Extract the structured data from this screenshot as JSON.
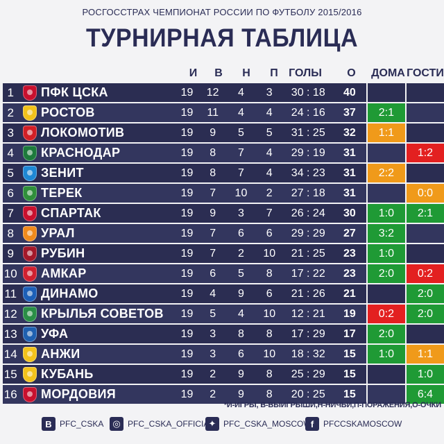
{
  "header": {
    "subtitle": "РОСГОССТРАХ ЧЕМПИОНАТ РОССИИ ПО ФУТБОЛУ 2015/2016",
    "title": "ТУРНИРНАЯ ТАБЛИЦА"
  },
  "columns": {
    "played": "И",
    "won": "В",
    "drawn": "Н",
    "lost": "П",
    "goals": "ГОЛЫ",
    "points": "О",
    "home": "ДОМА",
    "away": "ГОСТИ"
  },
  "colors": {
    "row": "#2b2d52",
    "row_alt": "#33365e",
    "win": "#1f9a35",
    "draw": "#f09a1a",
    "loss": "#e32020",
    "text_dark": "#2a2c55"
  },
  "rows": [
    {
      "pos": "1",
      "team": "ПФК ЦСКА",
      "played": "19",
      "won": "12",
      "drawn": "4",
      "lost": "3",
      "goals": "30 : 18",
      "points": "40",
      "home": "",
      "home_color": "",
      "away": "",
      "away_color": "",
      "crest": "#c8102e",
      "crest_icon": "cska-crest-icon"
    },
    {
      "pos": "2",
      "team": "РОСТОВ",
      "played": "19",
      "won": "11",
      "drawn": "4",
      "lost": "4",
      "goals": "24 : 16",
      "points": "37",
      "home": "2:1",
      "home_color": "green",
      "away": "",
      "away_color": "",
      "crest": "#f2c21b",
      "crest_icon": "rostov-crest-icon"
    },
    {
      "pos": "3",
      "team": "ЛОКОМОТИВ",
      "played": "19",
      "won": "9",
      "drawn": "5",
      "lost": "5",
      "goals": "31 : 25",
      "points": "32",
      "home": "1:1",
      "home_color": "orange",
      "away": "",
      "away_color": "",
      "crest": "#d21f26",
      "crest_icon": "lokomotiv-crest-icon"
    },
    {
      "pos": "4",
      "team": "КРАСНОДАР",
      "played": "19",
      "won": "8",
      "drawn": "7",
      "lost": "4",
      "goals": "29 : 19",
      "points": "31",
      "home": "",
      "home_color": "",
      "away": "1:2",
      "away_color": "red",
      "crest": "#1d7a3c",
      "crest_icon": "krasnodar-crest-icon"
    },
    {
      "pos": "5",
      "team": "ЗЕНИТ",
      "played": "19",
      "won": "8",
      "drawn": "7",
      "lost": "4",
      "goals": "34 : 23",
      "points": "31",
      "home": "2:2",
      "home_color": "orange",
      "away": "",
      "away_color": "",
      "crest": "#1e88d4",
      "crest_icon": "zenit-crest-icon"
    },
    {
      "pos": "6",
      "team": "ТЕРЕК",
      "played": "19",
      "won": "7",
      "drawn": "10",
      "lost": "2",
      "goals": "27 : 18",
      "points": "31",
      "home": "",
      "home_color": "",
      "away": "0:0",
      "away_color": "orange",
      "crest": "#2f8f3a",
      "crest_icon": "terek-crest-icon"
    },
    {
      "pos": "7",
      "team": "СПАРТАК",
      "played": "19",
      "won": "9",
      "drawn": "3",
      "lost": "7",
      "goals": "26 : 24",
      "points": "30",
      "home": "1:0",
      "home_color": "green",
      "away": "2:1",
      "away_color": "green",
      "crest": "#c8102e",
      "crest_icon": "spartak-crest-icon"
    },
    {
      "pos": "8",
      "team": "УРАЛ",
      "played": "19",
      "won": "7",
      "drawn": "6",
      "lost": "6",
      "goals": "29 : 29",
      "points": "27",
      "home": "3:2",
      "home_color": "green",
      "away": "",
      "away_color": "",
      "crest": "#f08a1c",
      "crest_icon": "ural-crest-icon"
    },
    {
      "pos": "9",
      "team": "РУБИН",
      "played": "19",
      "won": "7",
      "drawn": "2",
      "lost": "10",
      "goals": "21 : 25",
      "points": "23",
      "home": "1:0",
      "home_color": "green",
      "away": "",
      "away_color": "",
      "crest": "#a3182a",
      "crest_icon": "rubin-crest-icon"
    },
    {
      "pos": "10",
      "team": "АМКАР",
      "played": "19",
      "won": "6",
      "drawn": "5",
      "lost": "8",
      "goals": "17 : 22",
      "points": "23",
      "home": "2:0",
      "home_color": "green",
      "away": "0:2",
      "away_color": "red",
      "crest": "#d02030",
      "crest_icon": "amkar-crest-icon"
    },
    {
      "pos": "11",
      "team": "ДИНАМО",
      "played": "19",
      "won": "4",
      "drawn": "9",
      "lost": "6",
      "goals": "21 : 26",
      "points": "21",
      "home": "",
      "home_color": "",
      "away": "2:0",
      "away_color": "green",
      "crest": "#1c5fb8",
      "crest_icon": "dinamo-crest-icon"
    },
    {
      "pos": "12",
      "team": "КРЫЛЬЯ СОВЕТОВ",
      "played": "19",
      "won": "5",
      "drawn": "4",
      "lost": "10",
      "goals": "12 : 21",
      "points": "19",
      "home": "0:2",
      "home_color": "red",
      "away": "2:0",
      "away_color": "green",
      "crest": "#2a8e46",
      "crest_icon": "krylia-crest-icon"
    },
    {
      "pos": "13",
      "team": "УФА",
      "played": "19",
      "won": "3",
      "drawn": "8",
      "lost": "8",
      "goals": "17 : 29",
      "points": "17",
      "home": "2:0",
      "home_color": "green",
      "away": "",
      "away_color": "",
      "crest": "#1f60b0",
      "crest_icon": "ufa-crest-icon"
    },
    {
      "pos": "14",
      "team": "АНЖИ",
      "played": "19",
      "won": "3",
      "drawn": "6",
      "lost": "10",
      "goals": "18 : 32",
      "points": "15",
      "home": "1:0",
      "home_color": "green",
      "away": "1:1",
      "away_color": "orange",
      "crest": "#f2c21b",
      "crest_icon": "anji-crest-icon"
    },
    {
      "pos": "15",
      "team": "КУБАНЬ",
      "played": "19",
      "won": "2",
      "drawn": "9",
      "lost": "8",
      "goals": "25 : 29",
      "points": "15",
      "home": "",
      "home_color": "",
      "away": "1:0",
      "away_color": "green",
      "crest": "#f2c21b",
      "crest_icon": "kuban-crest-icon"
    },
    {
      "pos": "16",
      "team": "МОРДОВИЯ",
      "played": "19",
      "won": "2",
      "drawn": "9",
      "lost": "8",
      "goals": "20 : 25",
      "points": "15",
      "home": "",
      "home_color": "",
      "away": "6:4",
      "away_color": "green",
      "crest": "#c8102e",
      "crest_icon": "mordovia-crest-icon"
    }
  ],
  "legend": "*И-ИГРЫ, В-ВЫИГРЫШИ,Н-НИЧЬИ,П-ПОРАЖЕНИЯ,О-ОЧКИ",
  "footer": {
    "vk": {
      "glyph": "В",
      "label": "PFC_CSKA",
      "icon": "vk-icon"
    },
    "instagram": {
      "glyph": "◎",
      "label": "PFC_CSKA_OFFICIAL",
      "icon": "instagram-icon"
    },
    "twitter": {
      "glyph": "✦",
      "label": "PFC_CSKA_MOSCOW",
      "icon": "twitter-icon"
    },
    "facebook": {
      "glyph": "f",
      "label": "PFCCSKAMOSCOW",
      "icon": "facebook-icon"
    }
  }
}
